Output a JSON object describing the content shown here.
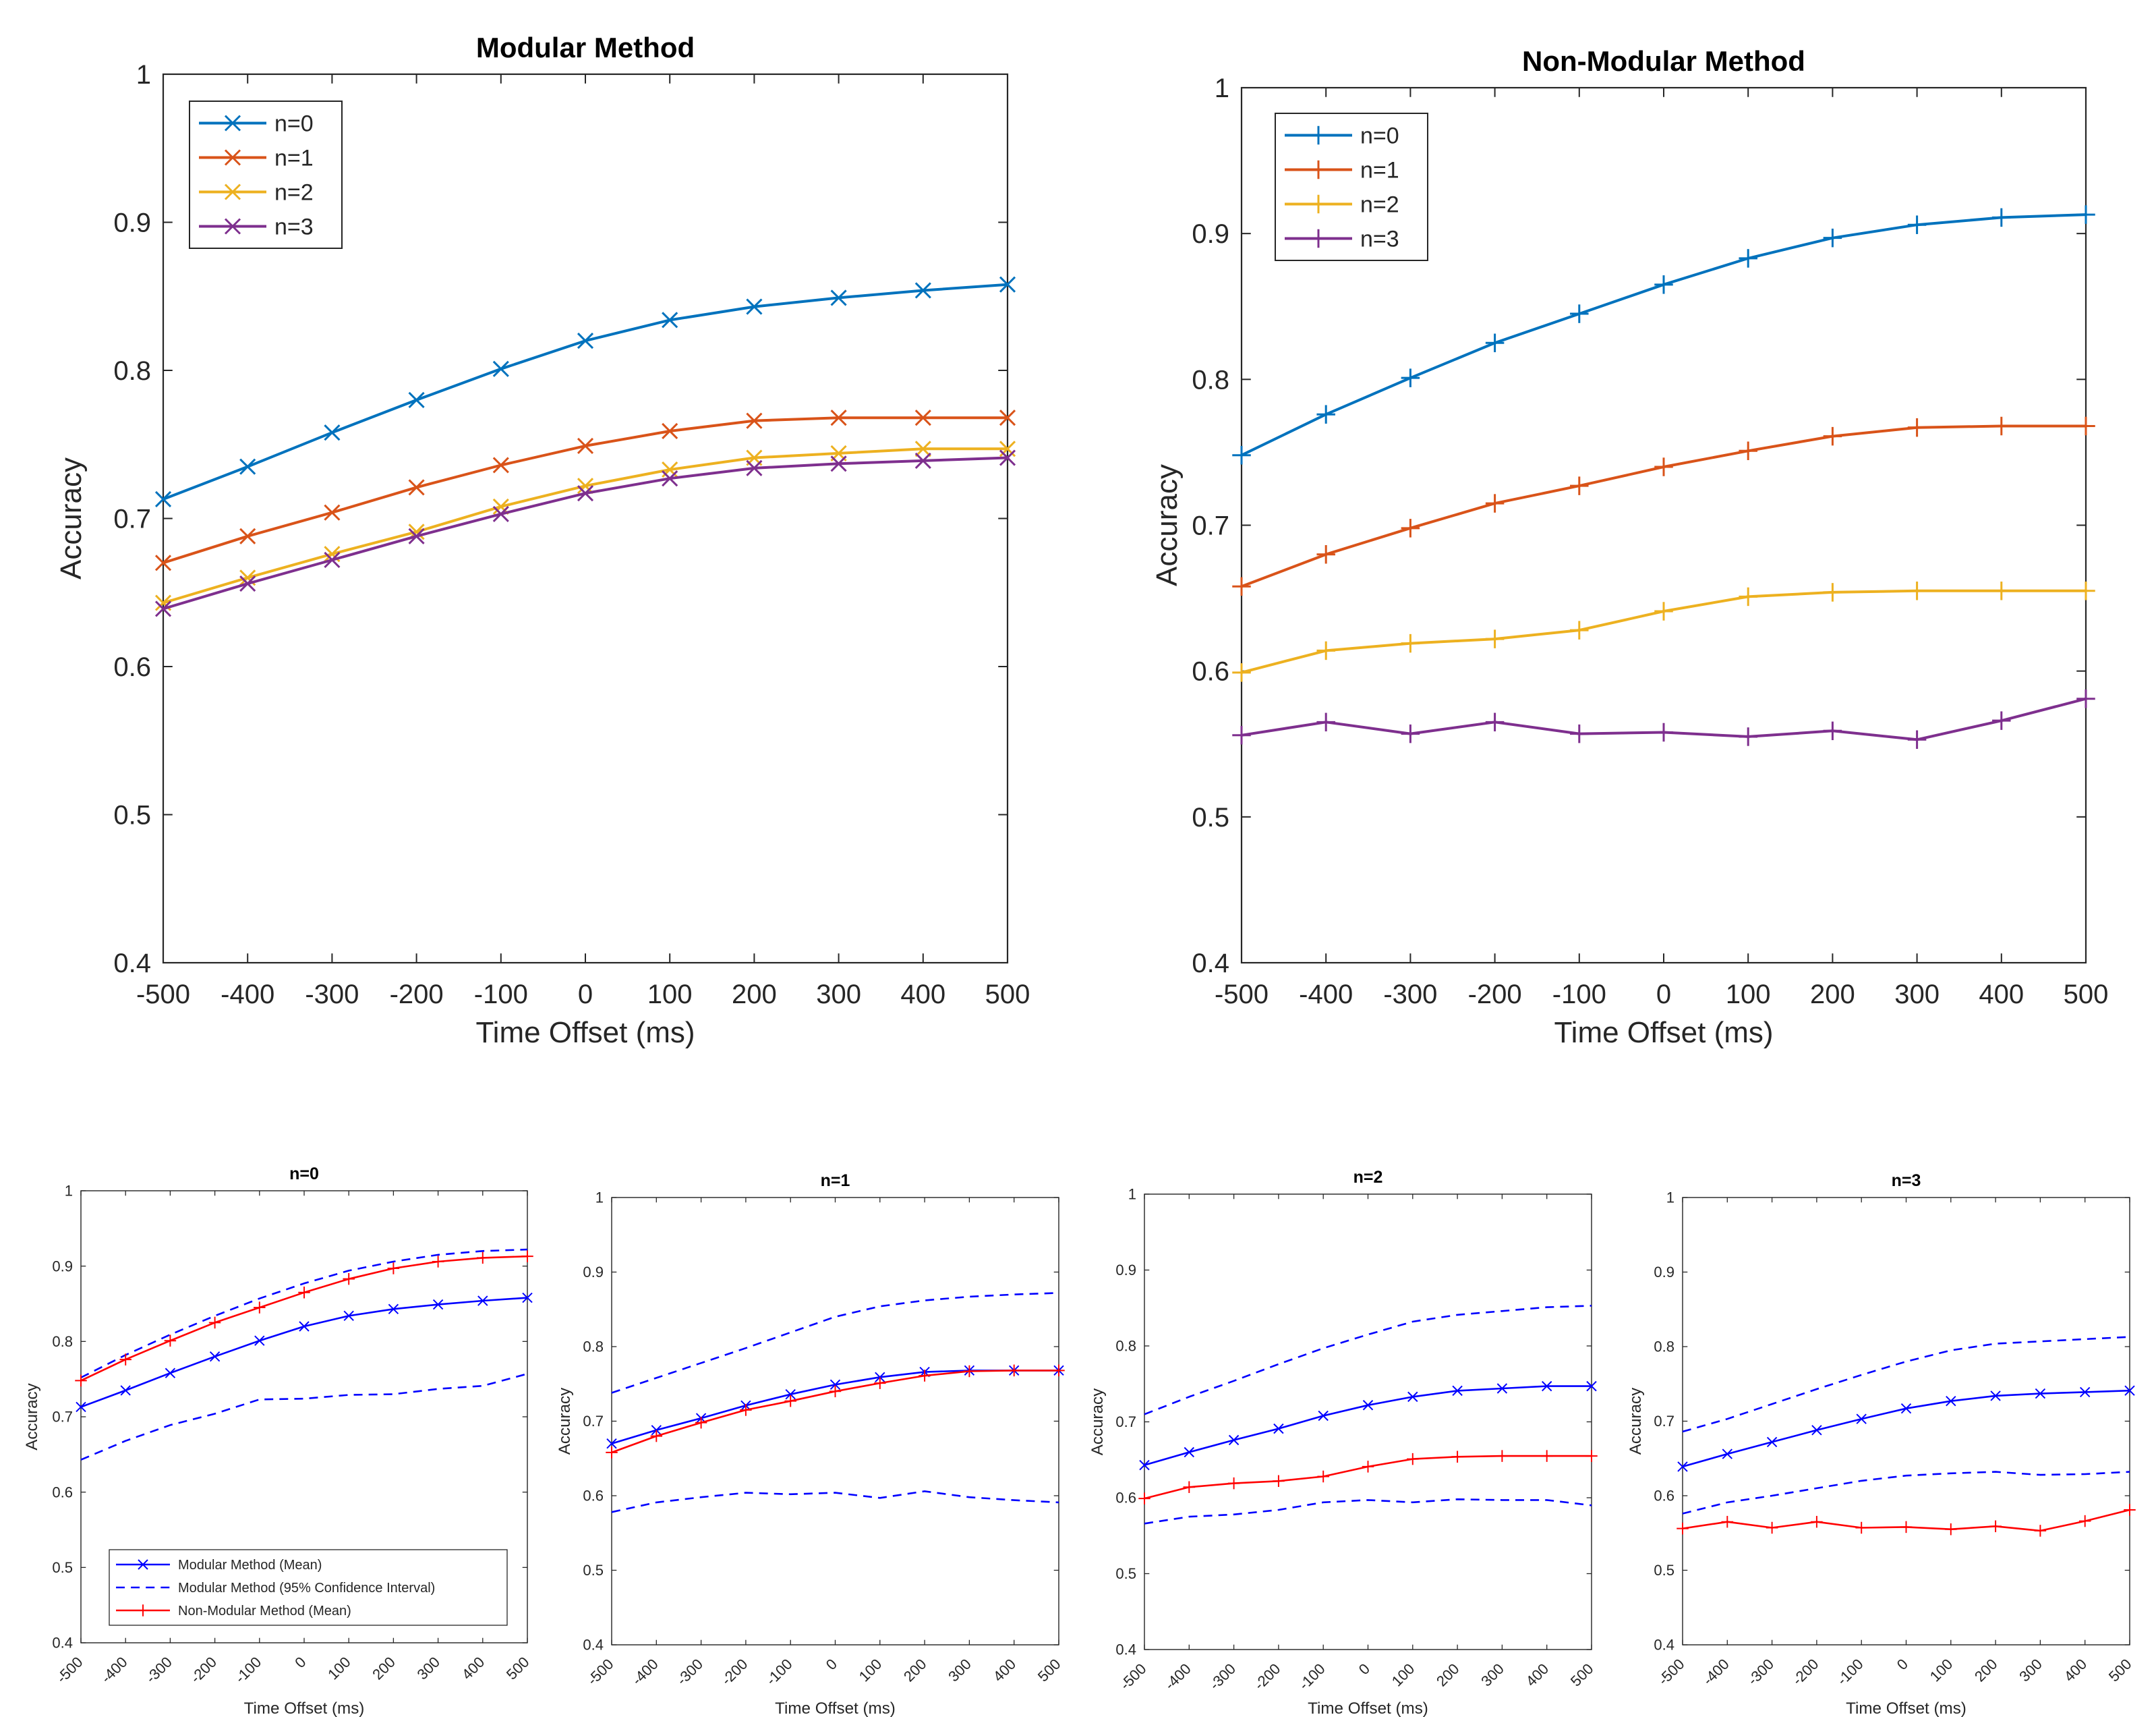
{
  "chart_data": [
    {
      "id": "modular",
      "type": "line",
      "title": "Modular Method",
      "xlabel": "Time Offset (ms)",
      "ylabel": "Accuracy",
      "x": [
        -500,
        -400,
        -300,
        -200,
        -100,
        0,
        100,
        200,
        300,
        400,
        500
      ],
      "xticks": [
        "-500",
        "-400",
        "-300",
        "-200",
        "-100",
        "0",
        "100",
        "200",
        "300",
        "400",
        "500"
      ],
      "yticks": [
        "0.4",
        "0.5",
        "0.6",
        "0.7",
        "0.8",
        "0.9",
        "1"
      ],
      "xlim": [
        -500,
        500
      ],
      "ylim": [
        0.4,
        1.0
      ],
      "legend_position": "top-left",
      "marker": "x",
      "series": [
        {
          "name": "n=0",
          "color": "#0072BD",
          "values": [
            0.713,
            0.735,
            0.758,
            0.78,
            0.801,
            0.82,
            0.834,
            0.843,
            0.849,
            0.854,
            0.858
          ]
        },
        {
          "name": "n=1",
          "color": "#D95319",
          "values": [
            0.67,
            0.688,
            0.704,
            0.721,
            0.736,
            0.749,
            0.759,
            0.766,
            0.768,
            0.768,
            0.768
          ]
        },
        {
          "name": "n=2",
          "color": "#EDB120",
          "values": [
            0.643,
            0.66,
            0.676,
            0.691,
            0.708,
            0.722,
            0.733,
            0.741,
            0.744,
            0.747,
            0.747
          ]
        },
        {
          "name": "n=3",
          "color": "#7E2F8E",
          "values": [
            0.639,
            0.656,
            0.672,
            0.688,
            0.703,
            0.717,
            0.727,
            0.734,
            0.737,
            0.739,
            0.741
          ]
        }
      ]
    },
    {
      "id": "nonmodular",
      "type": "line",
      "title": "Non-Modular Method",
      "xlabel": "Time Offset (ms)",
      "ylabel": "Accuracy",
      "x": [
        -500,
        -400,
        -300,
        -200,
        -100,
        0,
        100,
        200,
        300,
        400,
        500
      ],
      "xticks": [
        "-500",
        "-400",
        "-300",
        "-200",
        "-100",
        "0",
        "100",
        "200",
        "300",
        "400",
        "500"
      ],
      "yticks": [
        "0.4",
        "0.5",
        "0.6",
        "0.7",
        "0.8",
        "0.9",
        "1"
      ],
      "xlim": [
        -500,
        500
      ],
      "ylim": [
        0.4,
        1.0
      ],
      "legend_position": "top-left",
      "marker": "+",
      "series": [
        {
          "name": "n=0",
          "color": "#0072BD",
          "values": [
            0.748,
            0.776,
            0.801,
            0.825,
            0.845,
            0.865,
            0.883,
            0.897,
            0.906,
            0.911,
            0.913
          ]
        },
        {
          "name": "n=1",
          "color": "#D95319",
          "values": [
            0.658,
            0.68,
            0.698,
            0.715,
            0.727,
            0.74,
            0.751,
            0.761,
            0.767,
            0.768,
            0.768
          ]
        },
        {
          "name": "n=2",
          "color": "#EDB120",
          "values": [
            0.599,
            0.614,
            0.619,
            0.622,
            0.628,
            0.641,
            0.651,
            0.654,
            0.655,
            0.655,
            0.655
          ]
        },
        {
          "name": "n=3",
          "color": "#7E2F8E",
          "values": [
            0.556,
            0.565,
            0.557,
            0.565,
            0.557,
            0.558,
            0.555,
            0.559,
            0.553,
            0.566,
            0.581
          ]
        }
      ]
    },
    {
      "id": "n0",
      "type": "line",
      "title": "n=0",
      "xlabel": "Time Offset (ms)",
      "ylabel": "Accuracy",
      "x": [
        -500,
        -400,
        -300,
        -200,
        -100,
        0,
        100,
        200,
        300,
        400,
        500
      ],
      "xticks": [
        "-500",
        "-400",
        "-300",
        "-200",
        "-100",
        "0",
        "100",
        "200",
        "300",
        "400",
        "500"
      ],
      "yticks": [
        "0.4",
        "0.5",
        "0.6",
        "0.7",
        "0.8",
        "0.9",
        "1"
      ],
      "xlim": [
        -500,
        500
      ],
      "ylim": [
        0.4,
        1.0
      ],
      "legend_position": "bottom-left",
      "series": [
        {
          "name": "Modular Method (Mean)",
          "color": "#0000FF",
          "style": "solid",
          "marker": "x",
          "values": [
            0.713,
            0.735,
            0.758,
            0.78,
            0.801,
            0.82,
            0.834,
            0.843,
            0.849,
            0.854,
            0.858
          ]
        },
        {
          "name": "Modular Method (95% Confidence Interval)",
          "color": "#0000FF",
          "style": "dashed",
          "marker": "none",
          "values": [
            0.752,
            0.782,
            0.809,
            0.834,
            0.857,
            0.877,
            0.894,
            0.906,
            0.915,
            0.92,
            0.922
          ]
        },
        {
          "name": "Modular Method (95% Confidence Interval)",
          "color": "#0000FF",
          "style": "dashed",
          "marker": "none",
          "legend": false,
          "values": [
            0.643,
            0.668,
            0.689,
            0.704,
            0.723,
            0.724,
            0.729,
            0.73,
            0.737,
            0.741,
            0.757
          ]
        },
        {
          "name": "Non-Modular Method (Mean)",
          "color": "#FF0000",
          "style": "solid",
          "marker": "+",
          "values": [
            0.748,
            0.776,
            0.801,
            0.825,
            0.845,
            0.865,
            0.883,
            0.897,
            0.906,
            0.911,
            0.913
          ]
        }
      ]
    },
    {
      "id": "n1",
      "type": "line",
      "title": "n=1",
      "xlabel": "Time Offset (ms)",
      "ylabel": "Accuracy",
      "x": [
        -500,
        -400,
        -300,
        -200,
        -100,
        0,
        100,
        200,
        300,
        400,
        500
      ],
      "xticks": [
        "-500",
        "-400",
        "-300",
        "-200",
        "-100",
        "0",
        "100",
        "200",
        "300",
        "400",
        "500"
      ],
      "yticks": [
        "0.4",
        "0.5",
        "0.6",
        "0.7",
        "0.8",
        "0.9",
        "1"
      ],
      "xlim": [
        -500,
        500
      ],
      "ylim": [
        0.4,
        1.0
      ],
      "series": [
        {
          "name": "Modular Method (Mean)",
          "color": "#0000FF",
          "style": "solid",
          "marker": "x",
          "values": [
            0.67,
            0.688,
            0.704,
            0.721,
            0.736,
            0.749,
            0.759,
            0.766,
            0.768,
            0.768,
            0.768
          ]
        },
        {
          "name": "Modular Method (95% Confidence Interval)",
          "color": "#0000FF",
          "style": "dashed",
          "marker": "none",
          "values": [
            0.738,
            0.758,
            0.778,
            0.798,
            0.819,
            0.84,
            0.854,
            0.862,
            0.867,
            0.87,
            0.872
          ]
        },
        {
          "name": "Modular Method (95% Confidence Interval)",
          "color": "#0000FF",
          "style": "dashed",
          "marker": "none",
          "values": [
            0.578,
            0.591,
            0.598,
            0.604,
            0.602,
            0.604,
            0.597,
            0.606,
            0.598,
            0.594,
            0.591
          ]
        },
        {
          "name": "Non-Modular Method (Mean)",
          "color": "#FF0000",
          "style": "solid",
          "marker": "+",
          "values": [
            0.658,
            0.68,
            0.698,
            0.715,
            0.727,
            0.74,
            0.751,
            0.761,
            0.767,
            0.768,
            0.768
          ]
        }
      ]
    },
    {
      "id": "n2",
      "type": "line",
      "title": "n=2",
      "xlabel": "Time Offset (ms)",
      "ylabel": "Accuracy",
      "x": [
        -500,
        -400,
        -300,
        -200,
        -100,
        0,
        100,
        200,
        300,
        400,
        500
      ],
      "xticks": [
        "-500",
        "-400",
        "-300",
        "-200",
        "-100",
        "0",
        "100",
        "200",
        "300",
        "400",
        "500"
      ],
      "yticks": [
        "0.4",
        "0.5",
        "0.6",
        "0.7",
        "0.8",
        "0.9",
        "1"
      ],
      "xlim": [
        -500,
        500
      ],
      "ylim": [
        0.4,
        1.0
      ],
      "series": [
        {
          "name": "Modular Method (Mean)",
          "color": "#0000FF",
          "style": "solid",
          "marker": "x",
          "values": [
            0.643,
            0.66,
            0.676,
            0.691,
            0.708,
            0.722,
            0.733,
            0.741,
            0.744,
            0.747,
            0.747
          ]
        },
        {
          "name": "Modular Method (95% Confidence Interval)",
          "color": "#0000FF",
          "style": "dashed",
          "marker": "none",
          "values": [
            0.71,
            0.733,
            0.754,
            0.776,
            0.797,
            0.815,
            0.832,
            0.841,
            0.846,
            0.851,
            0.853
          ]
        },
        {
          "name": "Modular Method (95% Confidence Interval)",
          "color": "#0000FF",
          "style": "dashed",
          "marker": "none",
          "values": [
            0.566,
            0.575,
            0.578,
            0.584,
            0.594,
            0.597,
            0.594,
            0.598,
            0.597,
            0.597,
            0.59
          ]
        },
        {
          "name": "Non-Modular Method (Mean)",
          "color": "#FF0000",
          "style": "solid",
          "marker": "+",
          "values": [
            0.599,
            0.614,
            0.619,
            0.622,
            0.628,
            0.641,
            0.651,
            0.654,
            0.655,
            0.655,
            0.655
          ]
        }
      ]
    },
    {
      "id": "n3",
      "type": "line",
      "title": "n=3",
      "xlabel": "Time Offset (ms)",
      "ylabel": "Accuracy",
      "x": [
        -500,
        -400,
        -300,
        -200,
        -100,
        0,
        100,
        200,
        300,
        400,
        500
      ],
      "xticks": [
        "-500",
        "-400",
        "-300",
        "-200",
        "-100",
        "0",
        "100",
        "200",
        "300",
        "400",
        "500"
      ],
      "yticks": [
        "0.4",
        "0.5",
        "0.6",
        "0.7",
        "0.8",
        "0.9",
        "1"
      ],
      "xlim": [
        -500,
        500
      ],
      "ylim": [
        0.4,
        1.0
      ],
      "series": [
        {
          "name": "Modular Method (Mean)",
          "color": "#0000FF",
          "style": "solid",
          "marker": "x",
          "values": [
            0.639,
            0.656,
            0.672,
            0.688,
            0.703,
            0.717,
            0.727,
            0.734,
            0.737,
            0.739,
            0.741
          ]
        },
        {
          "name": "Modular Method (95% Confidence Interval)",
          "color": "#0000FF",
          "style": "dashed",
          "marker": "none",
          "values": [
            0.686,
            0.703,
            0.723,
            0.743,
            0.762,
            0.78,
            0.795,
            0.804,
            0.807,
            0.81,
            0.813
          ]
        },
        {
          "name": "Modular Method (95% Confidence Interval)",
          "color": "#0000FF",
          "style": "dashed",
          "marker": "none",
          "values": [
            0.576,
            0.591,
            0.6,
            0.61,
            0.62,
            0.627,
            0.63,
            0.632,
            0.628,
            0.629,
            0.632
          ]
        },
        {
          "name": "Non-Modular Method (Mean)",
          "color": "#FF0000",
          "style": "solid",
          "marker": "+",
          "values": [
            0.556,
            0.565,
            0.557,
            0.565,
            0.557,
            0.558,
            0.555,
            0.559,
            0.553,
            0.566,
            0.581
          ]
        }
      ]
    }
  ]
}
